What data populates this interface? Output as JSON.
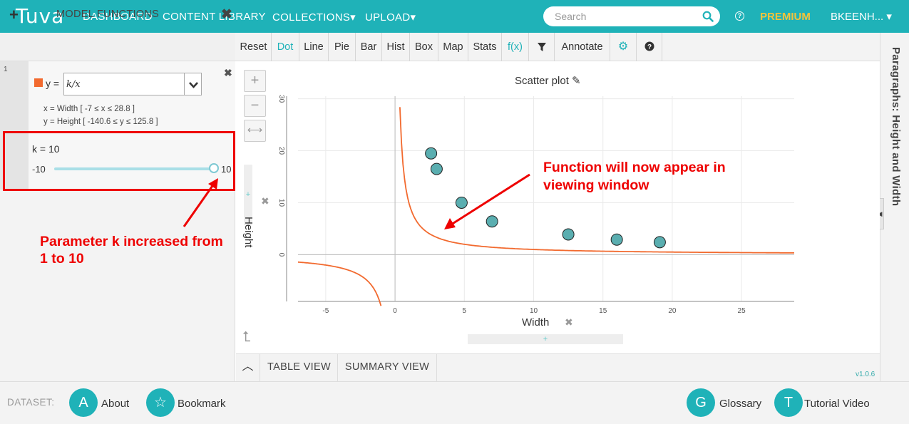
{
  "header": {
    "logo": "Tuva",
    "nav": [
      "DASHBOARD",
      "CONTENT LIBRARY",
      "COLLECTIONS▾",
      "UPLOAD▾"
    ],
    "search_placeholder": "Search",
    "premium": "PREMIUM",
    "user": "BKEENH... ▾",
    "help": "?"
  },
  "left_panel": {
    "title": "MODEL FUNCTIONS",
    "row_number": "1",
    "y_label": "y =",
    "function": "k/x",
    "x_domain": "x = Width  [ -7 ≤ x ≤ 28.8 ]",
    "y_domain": "y = Height [ -140.6 ≤ y ≤ 125.8 ]",
    "param_label": "k =  10",
    "param_min": "-10",
    "param_max": "10",
    "param_fraction": 1.0,
    "annotation": "Parameter k increased from 1 to 10",
    "swatch_color": "#f26a2f"
  },
  "toolbar": {
    "items": [
      "Reset",
      "Dot",
      "Line",
      "Pie",
      "Bar",
      "Hist",
      "Box",
      "Map",
      "Stats",
      "f(x)",
      "filter-icon",
      "Annotate",
      "gear-icon",
      "help-icon"
    ],
    "active": "Dot"
  },
  "plot": {
    "title": "Scatter plot",
    "annotation": "Function will now appear in viewing window",
    "xlabel": "Width",
    "ylabel": "Height"
  },
  "chart_data": {
    "type": "scatter",
    "title": "Scatter plot",
    "xlabel": "Width",
    "ylabel": "Height",
    "xlim": [
      -7,
      28.8
    ],
    "ylim": [
      -9,
      30.5
    ],
    "x_ticks": [
      -5,
      0,
      5,
      10,
      15,
      20,
      25
    ],
    "y_ticks": [
      0,
      10,
      20,
      30
    ],
    "series": [
      {
        "x": [
          2.6,
          3.0,
          4.8,
          7.0,
          12.5,
          16.0,
          19.1
        ],
        "y": [
          19.5,
          16.5,
          10.0,
          6.4,
          3.9,
          2.9,
          2.4
        ]
      }
    ],
    "function": {
      "expr": "k/x",
      "k": 10,
      "color": "#f26a2f"
    },
    "point_color": "#5aaeb0",
    "grid": true
  },
  "right_panel": {
    "title": "Paragraphs: Height and Width"
  },
  "tabs": [
    "TABLE VIEW",
    "SUMMARY VIEW"
  ],
  "version": "v1.0.6",
  "footer": {
    "dataset_label": "DATASET:",
    "left_buttons": [
      {
        "letter": "A",
        "label": "About"
      },
      {
        "letter": "☆",
        "label": "Bookmark"
      }
    ],
    "right_buttons": [
      {
        "letter": "G",
        "label": "Glossary"
      },
      {
        "letter": "T",
        "label": "Tutorial Video"
      }
    ]
  }
}
